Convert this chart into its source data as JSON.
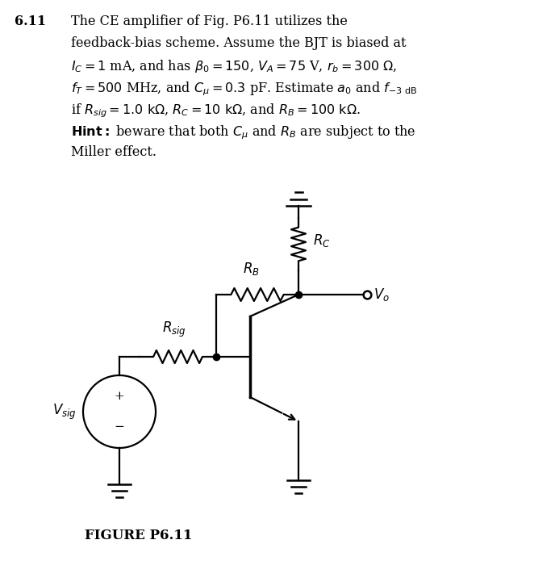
{
  "bg_color": "#ffffff",
  "text_color": "#000000",
  "title_num": "6.11",
  "line1": "The CE amplifier of Fig. P6.11 utilizes the",
  "line2": "feedback-bias scheme. Assume the BJT is biased at",
  "line3a": "$I_C = 1$ mA, and has $\\beta_0 = 150$, $V_A = 75$ V, $r_b = 300\\ \\Omega$,",
  "line4a": "$f_T = 500$ MHz, and $C_{\\mu} = 0.3$ pF. Estimate $a_0$ and $f_{-3\\ \\mathrm{dB}}$",
  "line5a": "if $R_{sig} = 1.0\\ \\mathrm{k}\\Omega$, $R_C = 10\\ \\mathrm{k}\\Omega$, and $R_B = 100\\ \\mathrm{k}\\Omega$.",
  "line6a": "beware that both $C_{\\mu}$ and $R_B$ are subject to the",
  "line7": "Miller effect.",
  "hint_bold": "Hint:",
  "figure_label": "FIGURE P6.11",
  "fig_width": 6.88,
  "fig_height": 7.0
}
